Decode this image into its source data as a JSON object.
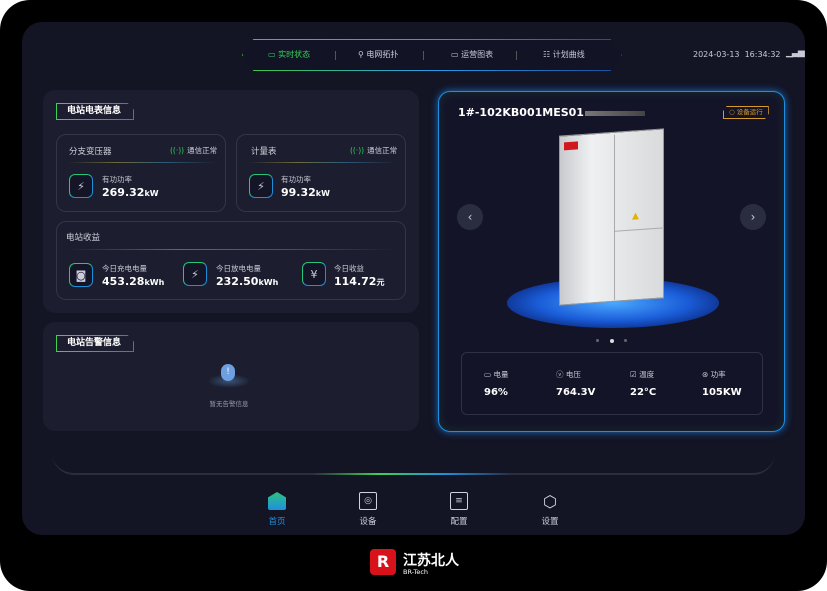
{
  "header": {
    "tabs": [
      {
        "label": "实时状态",
        "icon": "monitor-icon",
        "active": true
      },
      {
        "label": "电网拓扑",
        "icon": "topology-icon"
      },
      {
        "label": "运营图表",
        "icon": "chart-icon"
      },
      {
        "label": "计划曲线",
        "icon": "list-icon"
      }
    ],
    "datetime": "2024-03-13  16:34:32",
    "signal_icon": "signal-icon"
  },
  "meter_panel": {
    "title": "电站电表信息",
    "transformer": {
      "title": "分支变压器",
      "status": "通信正常",
      "metric_label": "有功功率",
      "value": "269.32",
      "unit": "kW"
    },
    "meter": {
      "title": "计量表",
      "status": "通信正常",
      "metric_label": "有功功率",
      "value": "99.32",
      "unit": "kW"
    },
    "revenue": {
      "title": "电站收益",
      "items": [
        {
          "label": "今日充电电量",
          "value": "453.28",
          "unit": "kWh"
        },
        {
          "label": "今日放电电量",
          "value": "232.50",
          "unit": "kWh"
        },
        {
          "label": "今日收益",
          "value": "114.72",
          "unit": "元"
        }
      ]
    }
  },
  "alarm_panel": {
    "title": "电站告警信息",
    "empty_text": "暂无告警信息"
  },
  "device": {
    "name": "1#-102KB001MES01",
    "status": "设备运行",
    "carousel": {
      "count": 3,
      "active": 1
    },
    "metrics": [
      {
        "label": "电量",
        "icon": "battery-icon",
        "value": "96%"
      },
      {
        "label": "电压",
        "icon": "voltage-icon",
        "value": "764.3V"
      },
      {
        "label": "温度",
        "icon": "thermometer-icon",
        "value": "22°C"
      },
      {
        "label": "功率",
        "icon": "power-icon",
        "value": "105KW"
      }
    ]
  },
  "bottom_nav": [
    {
      "label": "首页",
      "icon": "home-icon",
      "active": true
    },
    {
      "label": "设备",
      "icon": "device-icon"
    },
    {
      "label": "配置",
      "icon": "config-icon"
    },
    {
      "label": "设置",
      "icon": "settings-icon"
    }
  ],
  "brand": {
    "name": "江苏北人",
    "sub": "BR-Tech"
  },
  "colors": {
    "accent_green": "#39d25a",
    "accent_blue": "#1e8fe0",
    "status_amber": "#d89a2a",
    "bg": "#131424",
    "panel": "#1c1d2e"
  }
}
